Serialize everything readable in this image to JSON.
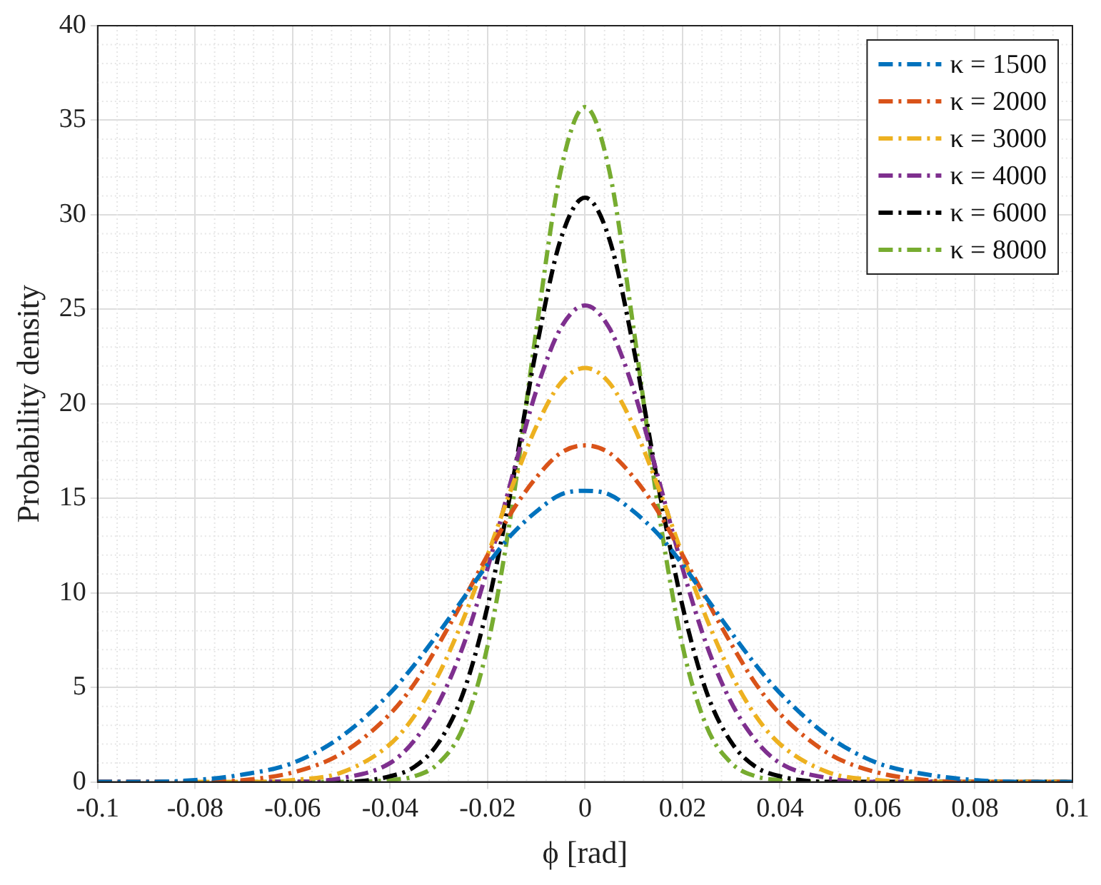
{
  "chart_data": {
    "type": "line",
    "xlabel": "ϕ [rad]",
    "ylabel": "Probability density",
    "x": [
      -0.1,
      -0.09,
      -0.08,
      -0.07,
      -0.06,
      -0.05,
      -0.04,
      -0.035,
      -0.03,
      -0.025,
      -0.02,
      -0.015,
      -0.01,
      -0.005,
      0,
      0.005,
      0.01,
      0.015,
      0.02,
      0.025,
      0.03,
      0.035,
      0.04,
      0.05,
      0.06,
      0.07,
      0.08,
      0.09,
      0.1
    ],
    "series": [
      {
        "name": "κ = 1500",
        "color": "#0072bd",
        "values": [
          0,
          0,
          0.1,
          0.4,
          1,
          2.4,
          4.7,
          6.2,
          7.9,
          9.7,
          11.5,
          13.1,
          14.3,
          15.2,
          15.4,
          15.2,
          14.3,
          13.1,
          11.5,
          9.7,
          7.9,
          6.2,
          4.7,
          2.4,
          1,
          0.4,
          0.1,
          0,
          0
        ]
      },
      {
        "name": "κ = 2000",
        "color": "#d95319",
        "values": [
          0,
          0,
          0,
          0.1,
          0.5,
          1.5,
          3.6,
          5.2,
          7.3,
          9.6,
          12,
          14.3,
          16.1,
          17.4,
          17.8,
          17.4,
          16.1,
          14.3,
          12,
          9.6,
          7.3,
          5.2,
          3.6,
          1.5,
          0.5,
          0.1,
          0,
          0,
          0
        ]
      },
      {
        "name": "κ = 3000",
        "color": "#edb120",
        "values": [
          null,
          null,
          0,
          0,
          0.1,
          0.5,
          2,
          3.5,
          5.7,
          8.6,
          12,
          15.6,
          18.8,
          21.1,
          21.9,
          21.1,
          18.8,
          15.6,
          12,
          8.6,
          5.7,
          3.5,
          2,
          0.5,
          0.1,
          0,
          0,
          0,
          0
        ]
      },
      {
        "name": "κ = 4000",
        "color": "#7e2f8e",
        "values": [
          0,
          0,
          0,
          0,
          0,
          0.2,
          1,
          2.2,
          4.2,
          7.2,
          11.3,
          16.1,
          20.7,
          24,
          25.2,
          24,
          20.7,
          16.1,
          11.3,
          7.2,
          4.2,
          2.2,
          1,
          0.2,
          0,
          0,
          0,
          null,
          null
        ]
      },
      {
        "name": "κ = 6000",
        "color": "#000000",
        "values": [
          0,
          0,
          0,
          0,
          0,
          0,
          0.3,
          0.8,
          2.1,
          4.7,
          9.3,
          15.7,
          22.9,
          28.7,
          30.9,
          28.7,
          22.9,
          15.7,
          9.3,
          4.7,
          2.1,
          0.8,
          0.3,
          0,
          0,
          0,
          0,
          0,
          0
        ]
      },
      {
        "name": "κ = 8000",
        "color": "#77ac30",
        "values": [
          null,
          null,
          null,
          0,
          0,
          0,
          0.1,
          0.3,
          1,
          2.9,
          7.2,
          14.5,
          23.9,
          32.3,
          35.7,
          32.3,
          23.9,
          14.5,
          7.2,
          2.9,
          1,
          0.3,
          0.1,
          0,
          0,
          0,
          0,
          0,
          0
        ]
      }
    ],
    "xlim": [
      -0.1,
      0.1
    ],
    "xticks": [
      -0.1,
      -0.08,
      -0.06,
      -0.04,
      -0.02,
      0,
      0.02,
      0.04,
      0.06,
      0.08,
      0.1
    ],
    "ylim": [
      0,
      40
    ],
    "yticks": [
      0,
      5,
      10,
      15,
      20,
      25,
      30,
      35,
      40
    ],
    "grid": true,
    "legend": "top right",
    "marker": "none",
    "line_style": "dashed"
  }
}
